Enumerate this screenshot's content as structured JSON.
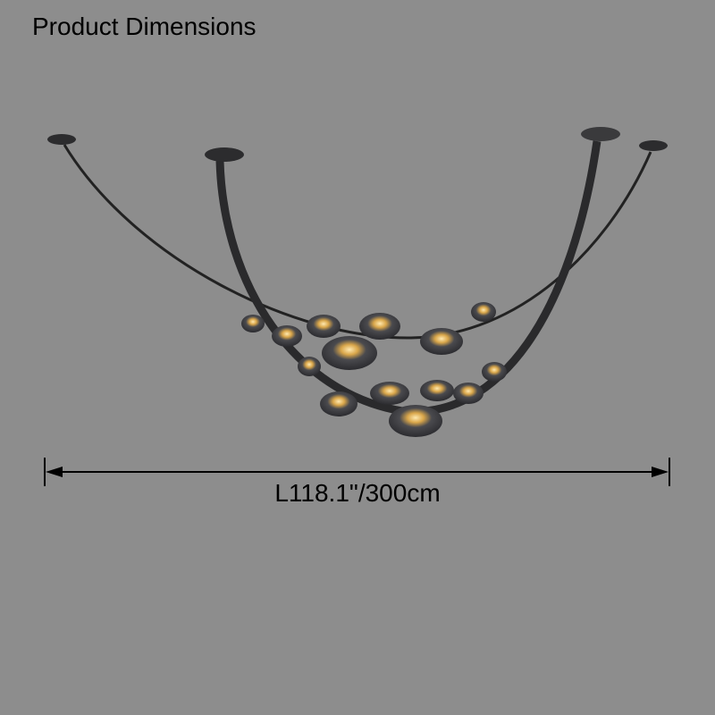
{
  "header": {
    "title": "Product Dimensions"
  },
  "dimension": {
    "length_label": "L118.1\"/300cm"
  },
  "colors": {
    "background": "#8d8d8d",
    "text": "#000000",
    "fixture": "#2a2a2c"
  }
}
